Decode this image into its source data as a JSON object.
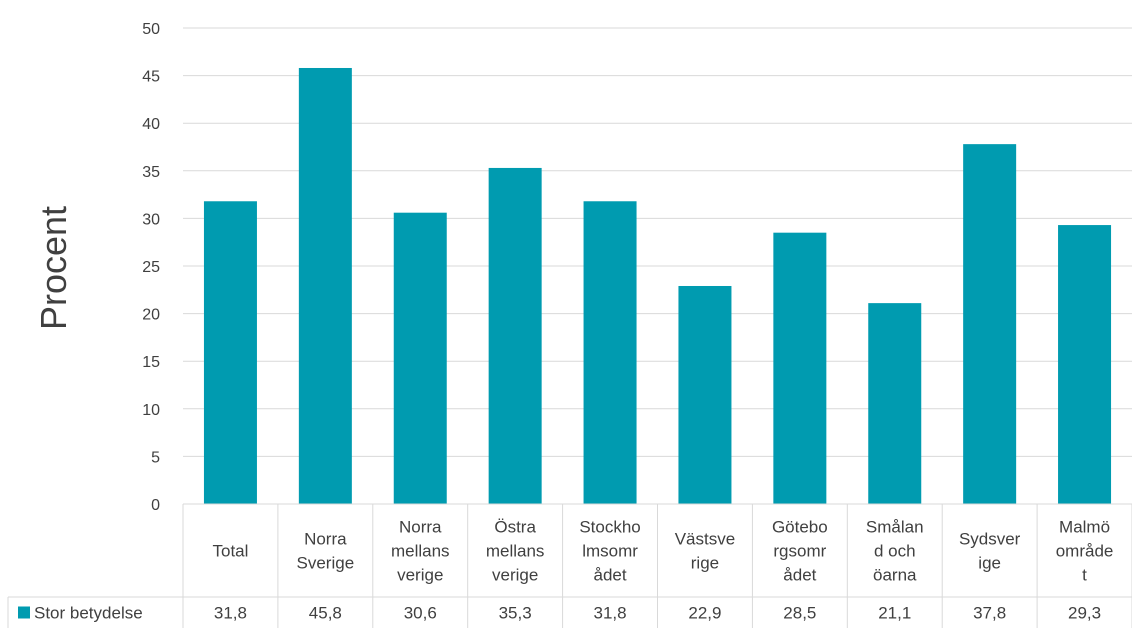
{
  "chart_data": {
    "type": "bar",
    "ylabel": "Procent",
    "ylim": [
      0,
      50
    ],
    "ytick_step": 5,
    "grid": true,
    "legend_placement": "data-table-left",
    "series_color": "#009BB0",
    "categories": [
      [
        "Total"
      ],
      [
        "Norra",
        "Sverige"
      ],
      [
        "Norra",
        "mellans",
        "verige"
      ],
      [
        "Östra",
        "mellans",
        "verige"
      ],
      [
        "Stockho",
        "lmsomr",
        "ådet"
      ],
      [
        "Västsve",
        "rige"
      ],
      [
        "Götebo",
        "rgsomr",
        "ådet"
      ],
      [
        "Smålan",
        "d och",
        "öarna"
      ],
      [
        "Sydsver",
        "ige"
      ],
      [
        "Malmö",
        "område",
        "t"
      ]
    ],
    "series": [
      {
        "name": "Stor betydelse",
        "values": [
          31.8,
          45.8,
          30.6,
          35.3,
          31.8,
          22.9,
          28.5,
          21.1,
          37.8,
          29.3
        ],
        "value_labels": [
          "31,8",
          "45,8",
          "30,6",
          "35,3",
          "31,8",
          "22,9",
          "28,5",
          "21,1",
          "37,8",
          "29,3"
        ]
      }
    ]
  }
}
